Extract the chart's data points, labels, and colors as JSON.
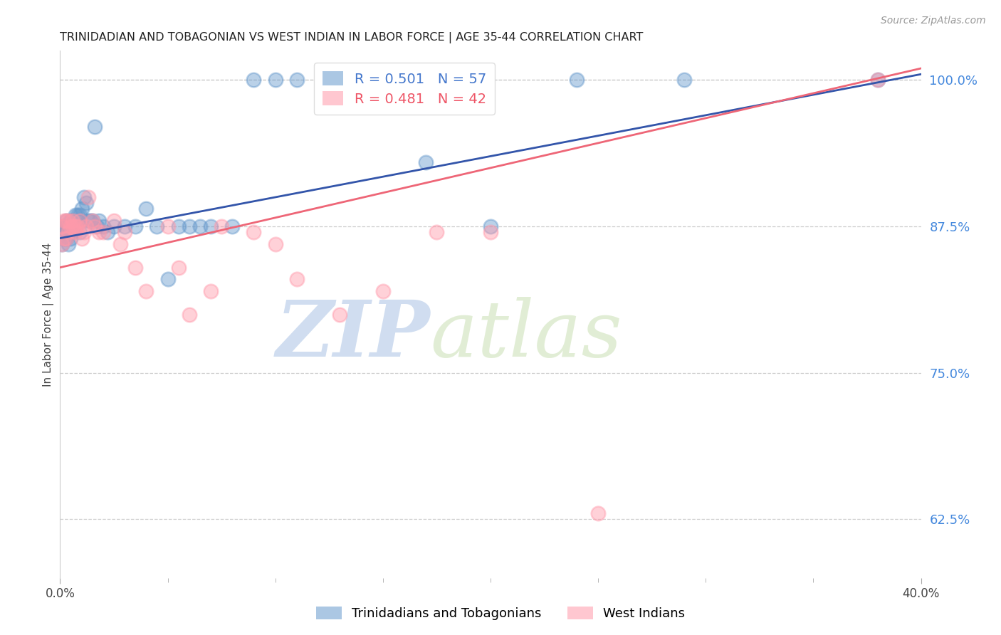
{
  "title": "TRINIDADIAN AND TOBAGONIAN VS WEST INDIAN IN LABOR FORCE | AGE 35-44 CORRELATION CHART",
  "source": "Source: ZipAtlas.com",
  "ylabel": "In Labor Force | Age 35-44",
  "legend_labels": [
    "Trinidadians and Tobagonians",
    "West Indians"
  ],
  "blue_R": 0.501,
  "blue_N": 57,
  "pink_R": 0.481,
  "pink_N": 42,
  "blue_color": "#6699CC",
  "pink_color": "#FF99AA",
  "blue_line_color": "#3355AA",
  "pink_line_color": "#EE6677",
  "x_min": 0.0,
  "x_max": 0.4,
  "y_min": 0.575,
  "y_max": 1.025,
  "right_yticks": [
    1.0,
    0.875,
    0.75,
    0.625
  ],
  "right_ytick_labels": [
    "100.0%",
    "87.5%",
    "75.0%",
    "62.5%"
  ],
  "watermark_zip": "ZIP",
  "watermark_atlas": "atlas",
  "blue_x": [
    0.001,
    0.001,
    0.001,
    0.002,
    0.002,
    0.002,
    0.003,
    0.003,
    0.003,
    0.003,
    0.004,
    0.004,
    0.004,
    0.005,
    0.005,
    0.005,
    0.006,
    0.006,
    0.006,
    0.007,
    0.007,
    0.008,
    0.008,
    0.009,
    0.009,
    0.01,
    0.011,
    0.012,
    0.013,
    0.014,
    0.015,
    0.016,
    0.017,
    0.018,
    0.02,
    0.022,
    0.025,
    0.03,
    0.035,
    0.04,
    0.045,
    0.05,
    0.055,
    0.06,
    0.065,
    0.07,
    0.08,
    0.09,
    0.1,
    0.11,
    0.13,
    0.15,
    0.17,
    0.2,
    0.24,
    0.29,
    0.38
  ],
  "blue_y": [
    0.875,
    0.875,
    0.86,
    0.875,
    0.87,
    0.865,
    0.88,
    0.875,
    0.87,
    0.865,
    0.875,
    0.87,
    0.86,
    0.88,
    0.875,
    0.865,
    0.88,
    0.875,
    0.87,
    0.885,
    0.875,
    0.885,
    0.88,
    0.885,
    0.87,
    0.89,
    0.9,
    0.895,
    0.88,
    0.88,
    0.88,
    0.96,
    0.875,
    0.88,
    0.875,
    0.87,
    0.875,
    0.875,
    0.875,
    0.89,
    0.875,
    0.83,
    0.875,
    0.875,
    0.875,
    0.875,
    0.875,
    1.0,
    1.0,
    1.0,
    1.0,
    1.0,
    0.93,
    0.875,
    1.0,
    1.0,
    1.0
  ],
  "pink_x": [
    0.001,
    0.001,
    0.002,
    0.002,
    0.003,
    0.003,
    0.004,
    0.004,
    0.005,
    0.006,
    0.006,
    0.007,
    0.007,
    0.008,
    0.009,
    0.01,
    0.011,
    0.012,
    0.013,
    0.015,
    0.016,
    0.018,
    0.02,
    0.025,
    0.028,
    0.03,
    0.035,
    0.04,
    0.05,
    0.055,
    0.06,
    0.07,
    0.075,
    0.09,
    0.1,
    0.11,
    0.13,
    0.15,
    0.175,
    0.2,
    0.25,
    0.38
  ],
  "pink_y": [
    0.875,
    0.86,
    0.88,
    0.865,
    0.88,
    0.865,
    0.88,
    0.87,
    0.875,
    0.88,
    0.875,
    0.87,
    0.875,
    0.875,
    0.88,
    0.865,
    0.87,
    0.875,
    0.9,
    0.88,
    0.875,
    0.87,
    0.87,
    0.88,
    0.86,
    0.87,
    0.84,
    0.82,
    0.875,
    0.84,
    0.8,
    0.82,
    0.875,
    0.87,
    0.86,
    0.83,
    0.8,
    0.82,
    0.87,
    0.87,
    0.63,
    1.0
  ],
  "blue_line_x0": 0.0,
  "blue_line_x1": 0.4,
  "blue_line_y0": 0.865,
  "blue_line_y1": 1.005,
  "pink_line_x0": 0.0,
  "pink_line_x1": 0.4,
  "pink_line_y0": 0.84,
  "pink_line_y1": 1.01
}
